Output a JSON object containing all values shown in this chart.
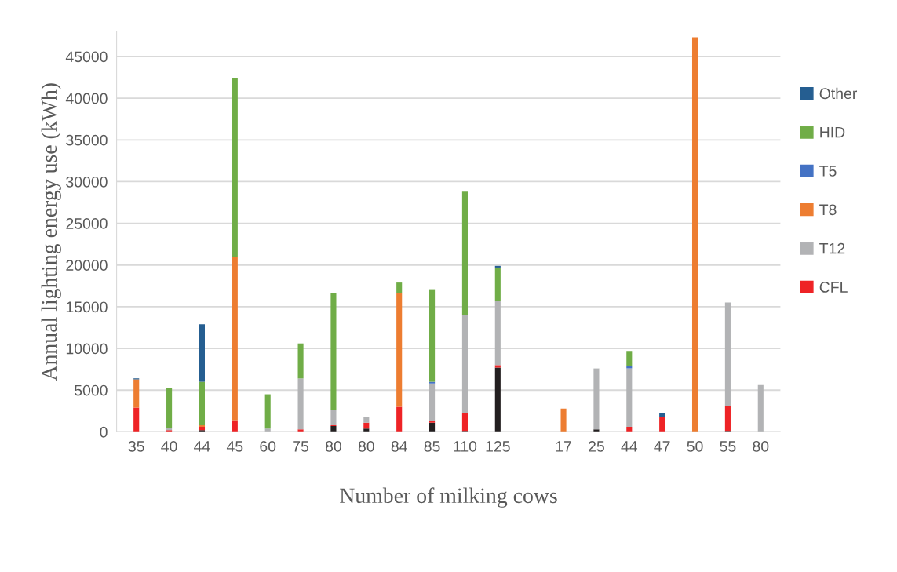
{
  "chart_data": {
    "type": "bar",
    "stacked": true,
    "xlabel": "Number of milking cows",
    "ylabel": "Annual lighting energy use (kWh)",
    "categories": [
      "35",
      "40",
      "44",
      "45",
      "60",
      "75",
      "80",
      "80",
      "84",
      "85",
      "110",
      "125",
      null,
      "17",
      "25",
      "44",
      "47",
      "50",
      "55",
      "80"
    ],
    "series": [
      {
        "color": "#231f20",
        "values": [
          null,
          null,
          200,
          null,
          null,
          null,
          700,
          400,
          null,
          1100,
          100,
          7700,
          null,
          null,
          300,
          null,
          null,
          null,
          100,
          null
        ]
      },
      {
        "name": "CFL",
        "color": "#ee2326",
        "values": [
          2900,
          200,
          400,
          1400,
          null,
          300,
          100,
          700,
          3000,
          200,
          2200,
          300,
          null,
          null,
          null,
          600,
          1800,
          null,
          3000,
          null
        ]
      },
      {
        "name": "T12",
        "color": "#b2b3b5",
        "values": [
          null,
          300,
          null,
          null,
          400,
          6100,
          1800,
          700,
          null,
          4500,
          11700,
          7700,
          null,
          null,
          7300,
          7000,
          null,
          null,
          12400,
          5600
        ]
      },
      {
        "name": "T8",
        "color": "#ed7d31",
        "values": [
          3400,
          null,
          200,
          19600,
          null,
          null,
          null,
          null,
          13600,
          null,
          null,
          null,
          null,
          2800,
          null,
          null,
          null,
          47300,
          null,
          null
        ]
      },
      {
        "name": "T5",
        "color": "#4472c4",
        "values": [
          null,
          null,
          null,
          null,
          null,
          null,
          null,
          null,
          null,
          200,
          null,
          null,
          null,
          null,
          null,
          300,
          null,
          null,
          null,
          null
        ]
      },
      {
        "name": "HID",
        "color": "#70ad47",
        "values": [
          null,
          4700,
          5200,
          21400,
          4100,
          4200,
          14000,
          null,
          1300,
          11100,
          14800,
          4000,
          null,
          null,
          null,
          1800,
          null,
          null,
          null,
          null
        ]
      },
      {
        "name": "Other",
        "color": "#255e91",
        "values": [
          100,
          null,
          6900,
          null,
          null,
          null,
          null,
          null,
          null,
          null,
          null,
          200,
          null,
          null,
          null,
          null,
          500,
          null,
          null,
          null
        ]
      }
    ],
    "ylim": [
      0,
      48000
    ],
    "yticks": [
      0,
      5000,
      10000,
      15000,
      20000,
      25000,
      30000,
      35000,
      40000,
      45000
    ],
    "grid": "y",
    "legend": "right"
  }
}
